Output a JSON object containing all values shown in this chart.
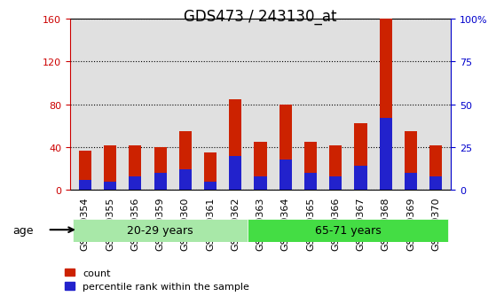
{
  "title": "GDS473 / 243130_at",
  "samples": [
    "GSM10354",
    "GSM10355",
    "GSM10356",
    "GSM10359",
    "GSM10360",
    "GSM10361",
    "GSM10362",
    "GSM10363",
    "GSM10364",
    "GSM10365",
    "GSM10366",
    "GSM10367",
    "GSM10368",
    "GSM10369",
    "GSM10370"
  ],
  "count_values": [
    37,
    42,
    42,
    40,
    55,
    35,
    85,
    45,
    80,
    45,
    42,
    62,
    160,
    55,
    42
  ],
  "percentile_values": [
    6,
    5,
    8,
    10,
    12,
    5,
    20,
    8,
    18,
    10,
    8,
    14,
    42,
    10,
    8
  ],
  "group1_label": "20-29 years",
  "group2_label": "65-71 years",
  "group1_count": 7,
  "group2_count": 8,
  "age_label": "age",
  "left_axis_color": "#cc0000",
  "right_axis_color": "#0000cc",
  "bar_red": "#cc2200",
  "bar_blue": "#2222cc",
  "ylim_left": [
    0,
    160
  ],
  "ylim_right": [
    0,
    100
  ],
  "left_ticks": [
    0,
    40,
    80,
    120,
    160
  ],
  "right_ticks": [
    0,
    25,
    50,
    75,
    100
  ],
  "right_tick_labels": [
    "0",
    "25",
    "50",
    "75",
    "100%"
  ],
  "grid_color": "#000000",
  "bg_plot": "#e0e0e0",
  "bg_group1": "#a8e8a8",
  "bg_group2": "#44dd44",
  "legend_count": "count",
  "legend_pct": "percentile rank within the sample",
  "title_fontsize": 12,
  "tick_fontsize": 8,
  "label_fontsize": 9
}
